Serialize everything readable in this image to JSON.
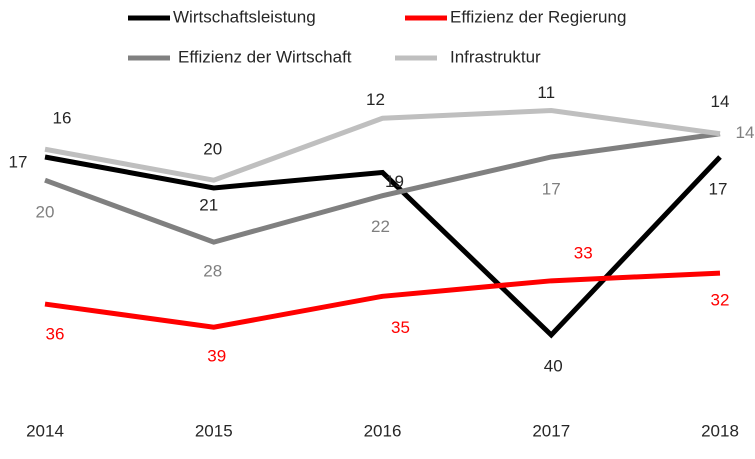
{
  "chart_data": {
    "type": "line",
    "x": [
      2014,
      2015,
      2016,
      2017,
      2018
    ],
    "xlim": [
      2014,
      2018
    ],
    "ylim": [
      0,
      45
    ],
    "inverted": true,
    "grid": false,
    "legend": "top",
    "series": [
      {
        "name": "Wirtschaftsleistung",
        "color": "#000000",
        "label_color": "#262626",
        "values": [
          17,
          21,
          19,
          40,
          17
        ]
      },
      {
        "name": "Effizienz der Regierung",
        "color": "#ff0000",
        "label_color": "#ff0000",
        "values": [
          36,
          39,
          35,
          33,
          32
        ]
      },
      {
        "name": "Effizienz der Wirtschaft",
        "color": "#808080",
        "label_color": "#7f7f7f",
        "values": [
          20,
          28,
          22,
          17,
          14
        ]
      },
      {
        "name": "Infrastruktur",
        "color": "#bfbfbf",
        "label_color": "#262626",
        "values": [
          16,
          20,
          12,
          11,
          14
        ]
      }
    ]
  }
}
